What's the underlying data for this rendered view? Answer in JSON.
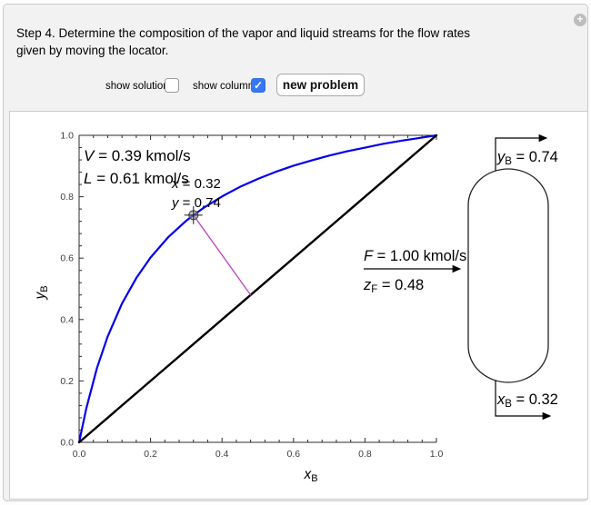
{
  "header": {
    "line1": "Step 4. Determine the composition of the vapor and liquid streams for the flow rates",
    "line2": "given by moving the locator."
  },
  "icons": {
    "expand": "+",
    "check": "✓"
  },
  "controls": {
    "show_solution_label": "show solution",
    "show_solution_checked": false,
    "show_column_label": "show column",
    "show_column_checked": true,
    "new_problem_label": "new problem",
    "checkbox_accent": "#3478f6"
  },
  "chart_data": {
    "type": "line",
    "xlabel": {
      "var": "x",
      "sub": "B"
    },
    "ylabel": {
      "var": "y",
      "sub": "B"
    },
    "xlim": [
      0,
      1
    ],
    "ylim": [
      0,
      1
    ],
    "x_ticks": [
      "0.0",
      "0.2",
      "0.4",
      "0.6",
      "0.8",
      "1.0"
    ],
    "y_ticks": [
      "0.0",
      "0.2",
      "0.4",
      "0.6",
      "0.8",
      "1.0"
    ],
    "minor_tick_step": 0.04,
    "grid": false,
    "series": [
      {
        "name": "equilibrium-curve",
        "color": "#0000f0",
        "width": 2.2,
        "x": [
          0,
          0.02,
          0.05,
          0.08,
          0.12,
          0.16,
          0.2,
          0.25,
          0.3,
          0.32,
          0.35,
          0.4,
          0.45,
          0.5,
          0.55,
          0.6,
          0.65,
          0.7,
          0.75,
          0.8,
          0.85,
          0.9,
          0.95,
          1.0
        ],
        "y": [
          0,
          0.11,
          0.242,
          0.345,
          0.452,
          0.535,
          0.602,
          0.669,
          0.722,
          0.74,
          0.765,
          0.801,
          0.832,
          0.858,
          0.881,
          0.901,
          0.918,
          0.934,
          0.948,
          0.96,
          0.972,
          0.982,
          0.991,
          1.0
        ]
      },
      {
        "name": "forty-five-degree-line",
        "color": "#000000",
        "width": 2.4,
        "x": [
          0,
          1
        ],
        "y": [
          0,
          1
        ]
      },
      {
        "name": "operating-tie-line",
        "color": "#bf3fbf",
        "width": 1.3,
        "x": [
          0.32,
          0.48
        ],
        "y": [
          0.74,
          0.48
        ]
      }
    ],
    "locator": {
      "x": 0.32,
      "y": 0.74
    },
    "annotations": [
      {
        "var": "V",
        "rest": " = 0.39 kmol/s"
      },
      {
        "var": "L",
        "rest": " = 0.61 kmol/s"
      },
      {
        "var": "x",
        "rest": " = 0.32"
      },
      {
        "var": "y",
        "rest": " = 0.74"
      }
    ]
  },
  "column_diagram": {
    "feed": {
      "flow_var": "F",
      "flow_rest": " = 1.00 kmol/s",
      "comp_var": "z",
      "comp_sub": "F",
      "comp_rest": " = 0.48"
    },
    "vapor": {
      "var": "y",
      "sub": "B",
      "rest": " = 0.74"
    },
    "bottoms": {
      "var": "x",
      "sub": "B",
      "rest": " = 0.32"
    }
  }
}
